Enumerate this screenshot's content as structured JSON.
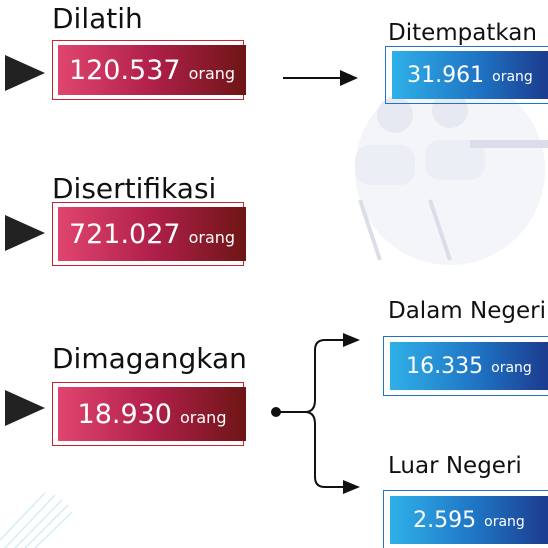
{
  "items": [
    {
      "label": "Dilatih",
      "value": "120.537",
      "unit": "orang",
      "result": {
        "label": "Ditempatkan",
        "value": "31.961",
        "unit": "orang"
      }
    },
    {
      "label": "Disertifikasi",
      "value": "721.027",
      "unit": "orang"
    },
    {
      "label": "Dimagangkan",
      "value": "18.930",
      "unit": "orang",
      "branches": [
        {
          "label": "Dalam Negeri",
          "value": "16.335",
          "unit": "orang"
        },
        {
          "label": "Luar Negeri",
          "value": "2.595",
          "unit": "orang"
        }
      ]
    }
  ]
}
